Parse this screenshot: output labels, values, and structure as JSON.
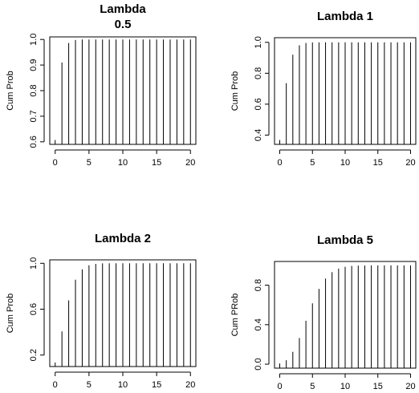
{
  "chart_data": [
    {
      "type": "bar",
      "title_lines": [
        "Lambda",
        "0.5"
      ],
      "xlabel": "",
      "ylabel": "Cum Prob",
      "x": [
        0,
        1,
        2,
        3,
        4,
        5,
        6,
        7,
        8,
        9,
        10,
        11,
        12,
        13,
        14,
        15,
        16,
        17,
        18,
        19,
        20
      ],
      "values": [
        0.607,
        0.91,
        0.986,
        0.998,
        1,
        1,
        1,
        1,
        1,
        1,
        1,
        1,
        1,
        1,
        1,
        1,
        1,
        1,
        1,
        1,
        1
      ],
      "xticks": [
        0,
        5,
        10,
        15,
        20
      ],
      "yticks": [
        0.6,
        0.7,
        0.8,
        0.9,
        1.0
      ],
      "ytick_labels": [
        "0.6",
        "0.7",
        "0.8",
        "0.9",
        "1.0"
      ],
      "xlim": [
        -0.8,
        20.8
      ],
      "ylim": [
        0.59,
        1.01
      ]
    },
    {
      "type": "bar",
      "title_lines": [
        "Lambda 1"
      ],
      "xlabel": "",
      "ylabel": "Cum Prob",
      "x": [
        0,
        1,
        2,
        3,
        4,
        5,
        6,
        7,
        8,
        9,
        10,
        11,
        12,
        13,
        14,
        15,
        16,
        17,
        18,
        19,
        20
      ],
      "values": [
        0.368,
        0.736,
        0.92,
        0.981,
        0.996,
        0.999,
        1,
        1,
        1,
        1,
        1,
        1,
        1,
        1,
        1,
        1,
        1,
        1,
        1,
        1,
        1
      ],
      "xticks": [
        0,
        5,
        10,
        15,
        20
      ],
      "yticks": [
        0.4,
        0.6,
        0.8,
        1.0
      ],
      "ytick_labels": [
        "0.4",
        "0.6",
        "0.8",
        "1.0"
      ],
      "xlim": [
        -0.8,
        20.8
      ],
      "ylim": [
        0.34,
        1.03
      ]
    },
    {
      "type": "bar",
      "title_lines": [
        "Lambda 2"
      ],
      "xlabel": "",
      "ylabel": "Cum Prob",
      "x": [
        0,
        1,
        2,
        3,
        4,
        5,
        6,
        7,
        8,
        9,
        10,
        11,
        12,
        13,
        14,
        15,
        16,
        17,
        18,
        19,
        20
      ],
      "values": [
        0.135,
        0.406,
        0.677,
        0.857,
        0.947,
        0.983,
        0.995,
        0.999,
        1,
        1,
        1,
        1,
        1,
        1,
        1,
        1,
        1,
        1,
        1,
        1,
        1
      ],
      "xticks": [
        0,
        5,
        10,
        15,
        20
      ],
      "yticks": [
        0.2,
        0.6,
        1.0
      ],
      "ytick_labels": [
        "0.2",
        "0.6",
        "1.0"
      ],
      "xlim": [
        -0.8,
        20.8
      ],
      "ylim": [
        0.1,
        1.03
      ]
    },
    {
      "type": "bar",
      "title_lines": [
        "Lambda 5"
      ],
      "xlabel": "",
      "ylabel": "Cum PRob",
      "x": [
        0,
        1,
        2,
        3,
        4,
        5,
        6,
        7,
        8,
        9,
        10,
        11,
        12,
        13,
        14,
        15,
        16,
        17,
        18,
        19,
        20
      ],
      "values": [
        0.007,
        0.04,
        0.125,
        0.265,
        0.44,
        0.616,
        0.762,
        0.867,
        0.932,
        0.968,
        0.986,
        0.995,
        0.998,
        0.999,
        1,
        1,
        1,
        1,
        1,
        1,
        1
      ],
      "xticks": [
        0,
        5,
        10,
        15,
        20
      ],
      "yticks": [
        0.0,
        0.4,
        0.8
      ],
      "ytick_labels": [
        "0.0",
        "0.4",
        "0.8"
      ],
      "xlim": [
        -0.8,
        20.8
      ],
      "ylim": [
        -0.04,
        1.04
      ]
    }
  ]
}
